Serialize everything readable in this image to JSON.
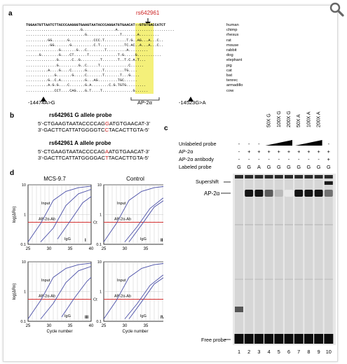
{
  "toolbar": {
    "zoom_icon": "magnifier-icon"
  },
  "panel_a": {
    "label": "a",
    "snp_label": "rs642961",
    "snp_color": "#cc2222",
    "highlight_color": "#f4f07a",
    "human_sequence": "TGGAATGTTAATCTTACCCAAGGGTGAAGTAATACCCAGGATGTGAACAT--GTGTGACCATCT",
    "rows": [
      {
        "seq": "TGGAATGTTAATCTTACCCAAGGGTGAAGTAATACCCAGGATGTGAACAT--GTGTGACCATCT",
        "species": "human"
      },
      {
        "seq": ".........................G...............A..........................",
        "species": "chimp"
      },
      {
        "seq": "...........................G...............T.......A.........",
        "species": "rhesus"
      },
      {
        "seq": "..........GG.......G...........CCC.T..........T.G..AG...A...C..",
        "species": "rat"
      },
      {
        "seq": "...........GG.......G..........C.T...........TC.AC..A...A...C..",
        "species": "mouse"
      },
      {
        "seq": "...............G.......G...C........T.........A.........",
        "species": "rabbit"
      },
      {
        "seq": "......G........G....CT......T.............T.G.....G...........",
        "species": "dog"
      },
      {
        "seq": "..............G......C..G.........T.......T..T.C.A.T...",
        "species": "elephant"
      },
      {
        "seq": "..............G.........G..C.....T.............C......",
        "species": "pig"
      },
      {
        "seq": "..........A....G....C......G.......T.........TG....",
        "species": "cat"
      },
      {
        "seq": ".............G.......G.....C.......T.......T...G....",
        "species": "bat"
      },
      {
        "seq": "..........G..C.A...........G...AG.........TGC......",
        "species": "tenrec"
      },
      {
        "seq": "..........A.G.G....C.......G.A........C.G.TGTG.........",
        "species": "armadillo"
      },
      {
        "seq": ".............CCT....CAG....G.T....T..............G......",
        "species": "cow"
      }
    ],
    "marker_left": "-14474A>G",
    "marker_right": "-14523G>A",
    "motif_label": "AP-2α"
  },
  "panel_b": {
    "label": "b",
    "probes": [
      {
        "title": "rs642961 G allele probe",
        "top_pre": "5'-CTGAAGTAATACCCCAG",
        "top_snp": "G",
        "top_post": "ATGTGAACAT-3'",
        "bot_pre": "3'-GACTTCATTATGGGGTC",
        "bot_snp": "C",
        "bot_post": "TACACTTGTA-5'"
      },
      {
        "title": "rs642961 A allele probe",
        "top_pre": "5'-CTGAAGTAATACCCCAG",
        "top_snp": "A",
        "top_post": "ATGTGAACAT-3'",
        "bot_pre": "3'-GACTTCATTATGGGGAC",
        "bot_snp": "T",
        "bot_post": "TACACTTGTA-5'"
      }
    ]
  },
  "panel_c": {
    "label": "c",
    "col_headers": [
      "50X G",
      "100X G",
      "200X G",
      "50X A",
      "100X A",
      "200X A"
    ],
    "row_labels": [
      "Unlabeled probe",
      "AP-2α",
      "AP-2α antibody",
      "Labeled probe"
    ],
    "unlabeled": [
      "-",
      "-",
      "-",
      "",
      "",
      "",
      "",
      "",
      "",
      "-"
    ],
    "ap2a": [
      "-",
      "+",
      "+",
      "+",
      "+",
      "+",
      "+",
      "+",
      "+",
      "+"
    ],
    "antibody": [
      "-",
      "-",
      "-",
      "-",
      "-",
      "-",
      "-",
      "-",
      "-",
      "+"
    ],
    "labeled": [
      "G",
      "G",
      "A",
      "G",
      "G",
      "G",
      "G",
      "G",
      "G",
      "G"
    ],
    "supershift_label": "Supershift",
    "ap2a_label": "AP-2α",
    "free_probe_label": "Free probe",
    "lanes": [
      "1",
      "2",
      "3",
      "4",
      "5",
      "6",
      "7",
      "8",
      "9",
      "10"
    ]
  },
  "panel_d": {
    "label": "d",
    "title_left": "MCS-9.7",
    "title_right": "Control",
    "y_axis_label": "log(ΔRn)",
    "x_axis_label": "Cycle number",
    "x_ticks": [
      "25",
      "30",
      "35",
      "40"
    ],
    "y_ticks": [
      "10",
      "1",
      "0.1"
    ],
    "ct_label": "Ct",
    "curve_labels": {
      "input": "Input",
      "ap2": "AP-2α-Ab",
      "igg": "IgG"
    },
    "subplot_labels": [
      "I",
      "II",
      "III",
      "IV"
    ],
    "curve_color": "#4a4fa8",
    "ct_color": "#d43030"
  },
  "chart_data": [
    {
      "type": "line",
      "title": "MCS-9.7",
      "panel": "I",
      "xlabel": "",
      "ylabel": "log(ΔRn)",
      "xlim": [
        25,
        40
      ],
      "y_scale": "log",
      "ylim": [
        0.1,
        10
      ],
      "series": [
        {
          "name": "Input",
          "x": [
            25,
            28,
            31,
            34,
            37,
            40
          ],
          "y": [
            0.12,
            0.5,
            3,
            6,
            8,
            9
          ]
        },
        {
          "name": "AP-2α-Ab",
          "x": [
            28,
            31,
            34,
            37,
            40
          ],
          "y": [
            0.12,
            0.35,
            2,
            5,
            7
          ]
        },
        {
          "name": "IgG",
          "x": [
            32,
            35,
            38,
            40
          ],
          "y": [
            0.15,
            0.6,
            2.5,
            4
          ]
        }
      ]
    },
    {
      "type": "line",
      "title": "Control",
      "panel": "II",
      "xlabel": "",
      "ylabel": "",
      "xlim": [
        25,
        40
      ],
      "y_scale": "log",
      "ylim": [
        0.1,
        10
      ],
      "series": [
        {
          "name": "Input",
          "x": [
            25,
            28,
            31,
            34,
            37,
            40
          ],
          "y": [
            0.12,
            0.5,
            3,
            6,
            8,
            9
          ]
        },
        {
          "name": "AP-2α-Ab",
          "x": [
            30,
            33,
            36,
            39,
            40
          ],
          "y": [
            0.12,
            0.4,
            1.6,
            3.5,
            4
          ]
        },
        {
          "name": "IgG",
          "x": [
            31,
            34,
            37,
            40
          ],
          "y": [
            0.12,
            0.45,
            1.8,
            3.5
          ]
        }
      ]
    },
    {
      "type": "line",
      "title": "",
      "panel": "III",
      "xlabel": "Cycle number",
      "ylabel": "log(ΔRn)",
      "xlim": [
        25,
        40
      ],
      "y_scale": "log",
      "ylim": [
        0.1,
        10
      ],
      "series": [
        {
          "name": "Input",
          "x": [
            25,
            28,
            31,
            34,
            37,
            40
          ],
          "y": [
            0.12,
            0.5,
            3,
            6,
            8,
            9
          ]
        },
        {
          "name": "AP-2α-Ab",
          "x": [
            28,
            31,
            34,
            37,
            40
          ],
          "y": [
            0.12,
            0.4,
            2,
            5,
            7
          ]
        },
        {
          "name": "IgG",
          "x": [
            33,
            36,
            39,
            40
          ],
          "y": [
            0.14,
            0.6,
            2.2,
            3
          ]
        }
      ]
    },
    {
      "type": "line",
      "title": "",
      "panel": "IV",
      "xlabel": "Cycle number",
      "ylabel": "",
      "xlim": [
        25,
        40
      ],
      "y_scale": "log",
      "ylim": [
        0.1,
        10
      ],
      "series": [
        {
          "name": "Input",
          "x": [
            25,
            28,
            31,
            34,
            37,
            40
          ],
          "y": [
            0.12,
            0.5,
            3,
            6,
            8,
            9
          ]
        },
        {
          "name": "AP-2α-Ab",
          "x": [
            30,
            33,
            36,
            39,
            40
          ],
          "y": [
            0.12,
            0.4,
            1.6,
            3.5,
            4
          ]
        },
        {
          "name": "IgG",
          "x": [
            31,
            34,
            37,
            40
          ],
          "y": [
            0.12,
            0.45,
            1.8,
            3.5
          ]
        }
      ]
    }
  ]
}
